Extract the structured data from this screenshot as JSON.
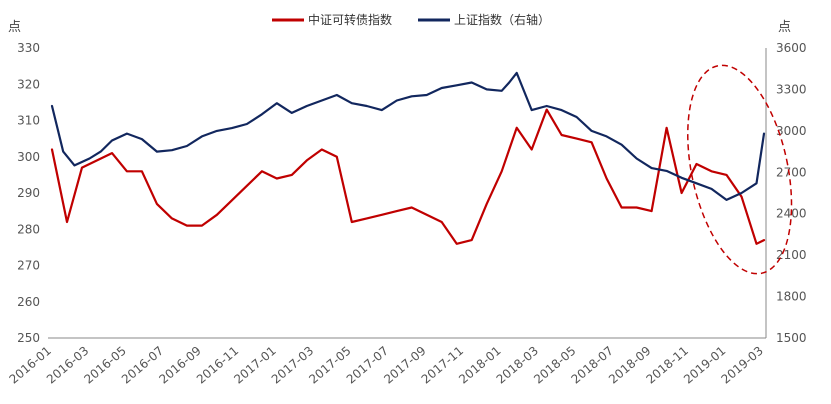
{
  "chart_data": {
    "type": "line",
    "left_unit": "点",
    "right_unit": "点",
    "left_axis": {
      "min": 250,
      "max": 330,
      "ticks": [
        250,
        260,
        270,
        280,
        290,
        300,
        310,
        320,
        330
      ]
    },
    "right_axis": {
      "min": 1500,
      "max": 3600,
      "ticks": [
        1500,
        1800,
        2100,
        2400,
        2700,
        3000,
        3300,
        3600
      ]
    },
    "x_labels": [
      "2016-01",
      "2016-03",
      "2016-05",
      "2016-07",
      "2016-09",
      "2016-11",
      "2017-01",
      "2017-03",
      "2017-05",
      "2017-07",
      "2017-09",
      "2017-11",
      "2018-01",
      "2018-03",
      "2018-05",
      "2018-07",
      "2018-09",
      "2018-11",
      "2019-01",
      "2019-03"
    ],
    "legend_position": "top-center",
    "grid": false,
    "series": [
      {
        "name": "中证可转债指数",
        "axis": "left",
        "color": "#c00000",
        "x": [
          0.0,
          0.4,
          0.8,
          1.2,
          1.6,
          2.0,
          2.4,
          2.8,
          3.2,
          3.6,
          4.0,
          4.4,
          4.8,
          5.2,
          5.6,
          6.0,
          6.4,
          6.8,
          7.2,
          7.6,
          8.0,
          8.4,
          8.8,
          9.2,
          9.6,
          10.0,
          10.4,
          10.8,
          11.2,
          11.6,
          12.0,
          12.4,
          12.8,
          13.2,
          13.6,
          14.0,
          14.4,
          14.8,
          15.2,
          15.6,
          16.0,
          16.4,
          16.8,
          17.2,
          17.6,
          18.0,
          18.4,
          18.8,
          19.0
        ],
        "values": [
          302,
          282,
          297,
          299,
          301,
          296,
          296,
          287,
          283,
          281,
          281,
          284,
          288,
          292,
          296,
          294,
          295,
          299,
          302,
          300,
          282,
          283,
          284,
          285,
          286,
          284,
          282,
          276,
          277,
          287,
          296,
          308,
          302,
          313,
          306,
          305,
          304,
          294,
          286,
          286,
          285,
          308,
          290,
          298,
          296,
          295,
          289,
          276,
          277
        ]
      },
      {
        "name": "上证指数（右轴）",
        "axis": "right",
        "color": "#12275e",
        "x": [
          0.0,
          0.3,
          0.6,
          1.0,
          1.3,
          1.6,
          2.0,
          2.4,
          2.8,
          3.2,
          3.6,
          4.0,
          4.4,
          4.8,
          5.2,
          5.6,
          6.0,
          6.4,
          6.8,
          7.2,
          7.6,
          8.0,
          8.4,
          8.8,
          9.2,
          9.6,
          10.0,
          10.4,
          10.8,
          11.2,
          11.6,
          12.0,
          12.2,
          12.4,
          12.8,
          13.2,
          13.6,
          14.0,
          14.4,
          14.8,
          15.2,
          15.6,
          16.0,
          16.4,
          16.8,
          17.2,
          17.6,
          18.0,
          18.4,
          18.8,
          19.0
        ],
        "values": [
          3180,
          2850,
          2750,
          2800,
          2850,
          2930,
          2980,
          2940,
          2850,
          2860,
          2890,
          2960,
          3000,
          3020,
          3050,
          3120,
          3200,
          3130,
          3180,
          3220,
          3260,
          3200,
          3180,
          3150,
          3220,
          3250,
          3260,
          3310,
          3330,
          3350,
          3300,
          3290,
          3350,
          3420,
          3150,
          3180,
          3150,
          3100,
          3000,
          2960,
          2900,
          2800,
          2730,
          2710,
          2660,
          2620,
          2580,
          2500,
          2550,
          2620,
          2980
        ]
      }
    ],
    "annotations": [
      {
        "type": "ellipse",
        "style": "dashed",
        "color": "#c00000",
        "x_center": 18.35,
        "y_center": 2720,
        "axis": "right"
      }
    ]
  }
}
